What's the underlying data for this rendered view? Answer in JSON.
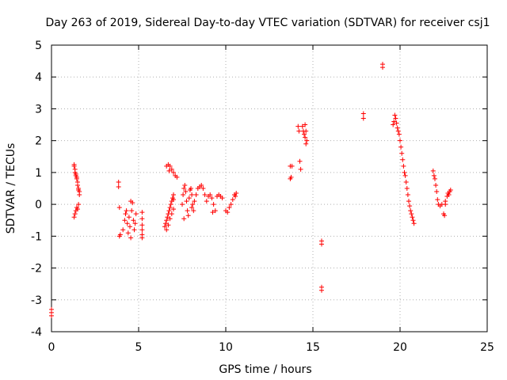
{
  "chart_data": {
    "type": "scatter",
    "title": "Day 263 of 2019, Sidereal Day-to-day VTEC variation (SDTVAR) for receiver csj1",
    "xlabel": "GPS time / hours",
    "ylabel": "SDTVAR / TECUs",
    "xlim": [
      0,
      25
    ],
    "ylim": [
      -4,
      5
    ],
    "xticks": [
      0,
      5,
      10,
      15,
      20,
      25
    ],
    "yticks": [
      -4,
      -3,
      -2,
      -1,
      0,
      1,
      2,
      3,
      4,
      5
    ],
    "grid": true,
    "marker": "+",
    "color": "#ff0000",
    "series": [
      {
        "name": "csj1",
        "points": [
          [
            0.0,
            -3.3
          ],
          [
            0.0,
            -3.4
          ],
          [
            0.0,
            -3.5
          ],
          [
            1.3,
            1.25
          ],
          [
            1.3,
            1.2
          ],
          [
            1.35,
            1.1
          ],
          [
            1.35,
            1.0
          ],
          [
            1.4,
            0.95
          ],
          [
            1.4,
            0.9
          ],
          [
            1.45,
            0.85
          ],
          [
            1.45,
            0.8
          ],
          [
            1.5,
            0.7
          ],
          [
            1.5,
            0.6
          ],
          [
            1.55,
            0.5
          ],
          [
            1.55,
            0.45
          ],
          [
            1.6,
            0.4
          ],
          [
            1.6,
            0.3
          ],
          [
            1.35,
            -0.3
          ],
          [
            1.4,
            -0.2
          ],
          [
            1.45,
            -0.1
          ],
          [
            1.5,
            -0.15
          ],
          [
            1.55,
            0.0
          ],
          [
            1.3,
            -0.4
          ],
          [
            3.85,
            0.7
          ],
          [
            3.85,
            0.55
          ],
          [
            3.9,
            -0.1
          ],
          [
            3.9,
            -1.0
          ],
          [
            3.95,
            -0.95
          ],
          [
            4.1,
            -0.8
          ],
          [
            4.2,
            -0.5
          ],
          [
            4.25,
            -0.3
          ],
          [
            4.3,
            -0.2
          ],
          [
            4.35,
            -0.6
          ],
          [
            4.4,
            -0.9
          ],
          [
            4.45,
            -0.4
          ],
          [
            4.5,
            -0.7
          ],
          [
            4.55,
            -1.05
          ],
          [
            4.55,
            0.1
          ],
          [
            4.6,
            -0.2
          ],
          [
            4.65,
            0.05
          ],
          [
            4.7,
            -0.5
          ],
          [
            4.75,
            -0.8
          ],
          [
            4.8,
            -0.6
          ],
          [
            4.85,
            -0.3
          ],
          [
            5.2,
            -0.25
          ],
          [
            5.2,
            -0.45
          ],
          [
            5.2,
            -0.65
          ],
          [
            5.2,
            -0.8
          ],
          [
            5.2,
            -0.95
          ],
          [
            5.2,
            -1.05
          ],
          [
            6.5,
            -0.7
          ],
          [
            6.55,
            -0.6
          ],
          [
            6.6,
            -0.5
          ],
          [
            6.65,
            -0.4
          ],
          [
            6.7,
            -0.3
          ],
          [
            6.75,
            -0.2
          ],
          [
            6.8,
            -0.1
          ],
          [
            6.85,
            0.0
          ],
          [
            6.9,
            0.1
          ],
          [
            6.95,
            0.2
          ],
          [
            7.0,
            0.3
          ],
          [
            7.0,
            0.15
          ],
          [
            6.6,
            -0.8
          ],
          [
            6.7,
            -0.65
          ],
          [
            6.8,
            -0.45
          ],
          [
            6.9,
            -0.3
          ],
          [
            7.0,
            -0.15
          ],
          [
            6.6,
            1.2
          ],
          [
            6.7,
            1.25
          ],
          [
            6.8,
            1.2
          ],
          [
            6.9,
            1.1
          ],
          [
            7.0,
            1.0
          ],
          [
            7.1,
            0.9
          ],
          [
            7.2,
            0.85
          ],
          [
            6.75,
            1.05
          ],
          [
            7.5,
            0.0
          ],
          [
            7.55,
            0.3
          ],
          [
            7.6,
            0.5
          ],
          [
            7.65,
            0.6
          ],
          [
            7.7,
            0.4
          ],
          [
            7.75,
            0.1
          ],
          [
            7.8,
            -0.2
          ],
          [
            7.85,
            -0.35
          ],
          [
            7.9,
            0.2
          ],
          [
            7.95,
            0.45
          ],
          [
            8.0,
            0.5
          ],
          [
            8.05,
            0.3
          ],
          [
            8.1,
            0.0
          ],
          [
            8.15,
            -0.2
          ],
          [
            8.2,
            0.1
          ],
          [
            8.3,
            0.3
          ],
          [
            8.4,
            0.5
          ],
          [
            8.5,
            0.55
          ],
          [
            8.6,
            0.6
          ],
          [
            8.7,
            0.5
          ],
          [
            8.8,
            0.3
          ],
          [
            8.9,
            0.1
          ],
          [
            9.0,
            0.25
          ],
          [
            9.1,
            0.3
          ],
          [
            9.2,
            0.2
          ],
          [
            9.3,
            0.0
          ],
          [
            9.4,
            -0.2
          ],
          [
            9.5,
            0.25
          ],
          [
            9.6,
            0.3
          ],
          [
            9.7,
            0.25
          ],
          [
            9.8,
            0.2
          ],
          [
            7.6,
            -0.45
          ],
          [
            8.05,
            -0.1
          ],
          [
            9.25,
            -0.25
          ],
          [
            10.0,
            -0.2
          ],
          [
            10.1,
            -0.25
          ],
          [
            10.2,
            -0.1
          ],
          [
            10.3,
            0.0
          ],
          [
            10.4,
            0.15
          ],
          [
            10.5,
            0.3
          ],
          [
            10.6,
            0.35
          ],
          [
            10.55,
            0.25
          ],
          [
            13.7,
            1.2
          ],
          [
            13.75,
            0.85
          ],
          [
            13.8,
            1.2
          ],
          [
            13.7,
            0.8
          ],
          [
            14.15,
            2.45
          ],
          [
            14.2,
            2.3
          ],
          [
            14.25,
            1.35
          ],
          [
            14.3,
            1.1
          ],
          [
            14.4,
            2.45
          ],
          [
            14.45,
            2.3
          ],
          [
            14.5,
            2.2
          ],
          [
            14.55,
            2.5
          ],
          [
            14.55,
            2.1
          ],
          [
            14.6,
            1.9
          ],
          [
            14.65,
            2.0
          ],
          [
            14.6,
            2.3
          ],
          [
            15.5,
            -1.15
          ],
          [
            15.5,
            -1.25
          ],
          [
            15.5,
            -2.6
          ],
          [
            15.5,
            -2.7
          ],
          [
            17.9,
            2.85
          ],
          [
            17.9,
            2.7
          ],
          [
            19.0,
            4.4
          ],
          [
            19.0,
            4.3
          ],
          [
            19.6,
            2.5
          ],
          [
            19.65,
            2.6
          ],
          [
            19.7,
            2.8
          ],
          [
            19.75,
            2.7
          ],
          [
            19.8,
            2.55
          ],
          [
            19.85,
            2.4
          ],
          [
            19.9,
            2.3
          ],
          [
            19.95,
            2.2
          ],
          [
            20.0,
            2.0
          ],
          [
            20.05,
            1.8
          ],
          [
            20.1,
            1.6
          ],
          [
            20.15,
            1.4
          ],
          [
            20.2,
            1.2
          ],
          [
            20.25,
            1.0
          ],
          [
            20.3,
            0.9
          ],
          [
            20.35,
            0.7
          ],
          [
            20.4,
            0.5
          ],
          [
            20.45,
            0.3
          ],
          [
            20.5,
            0.1
          ],
          [
            20.55,
            -0.05
          ],
          [
            20.6,
            -0.2
          ],
          [
            20.65,
            -0.3
          ],
          [
            20.7,
            -0.4
          ],
          [
            20.75,
            -0.5
          ],
          [
            20.8,
            -0.6
          ],
          [
            21.9,
            1.05
          ],
          [
            21.95,
            0.9
          ],
          [
            22.0,
            0.8
          ],
          [
            22.05,
            0.6
          ],
          [
            22.1,
            0.4
          ],
          [
            22.15,
            0.15
          ],
          [
            22.2,
            0.0
          ],
          [
            22.3,
            -0.05
          ],
          [
            22.4,
            0.0
          ],
          [
            22.5,
            -0.3
          ],
          [
            22.55,
            -0.35
          ],
          [
            22.6,
            0.1
          ],
          [
            22.7,
            0.25
          ],
          [
            22.75,
            0.35
          ],
          [
            22.8,
            0.3
          ],
          [
            22.85,
            0.4
          ],
          [
            22.9,
            0.45
          ],
          [
            22.6,
            0.0
          ]
        ]
      }
    ]
  }
}
